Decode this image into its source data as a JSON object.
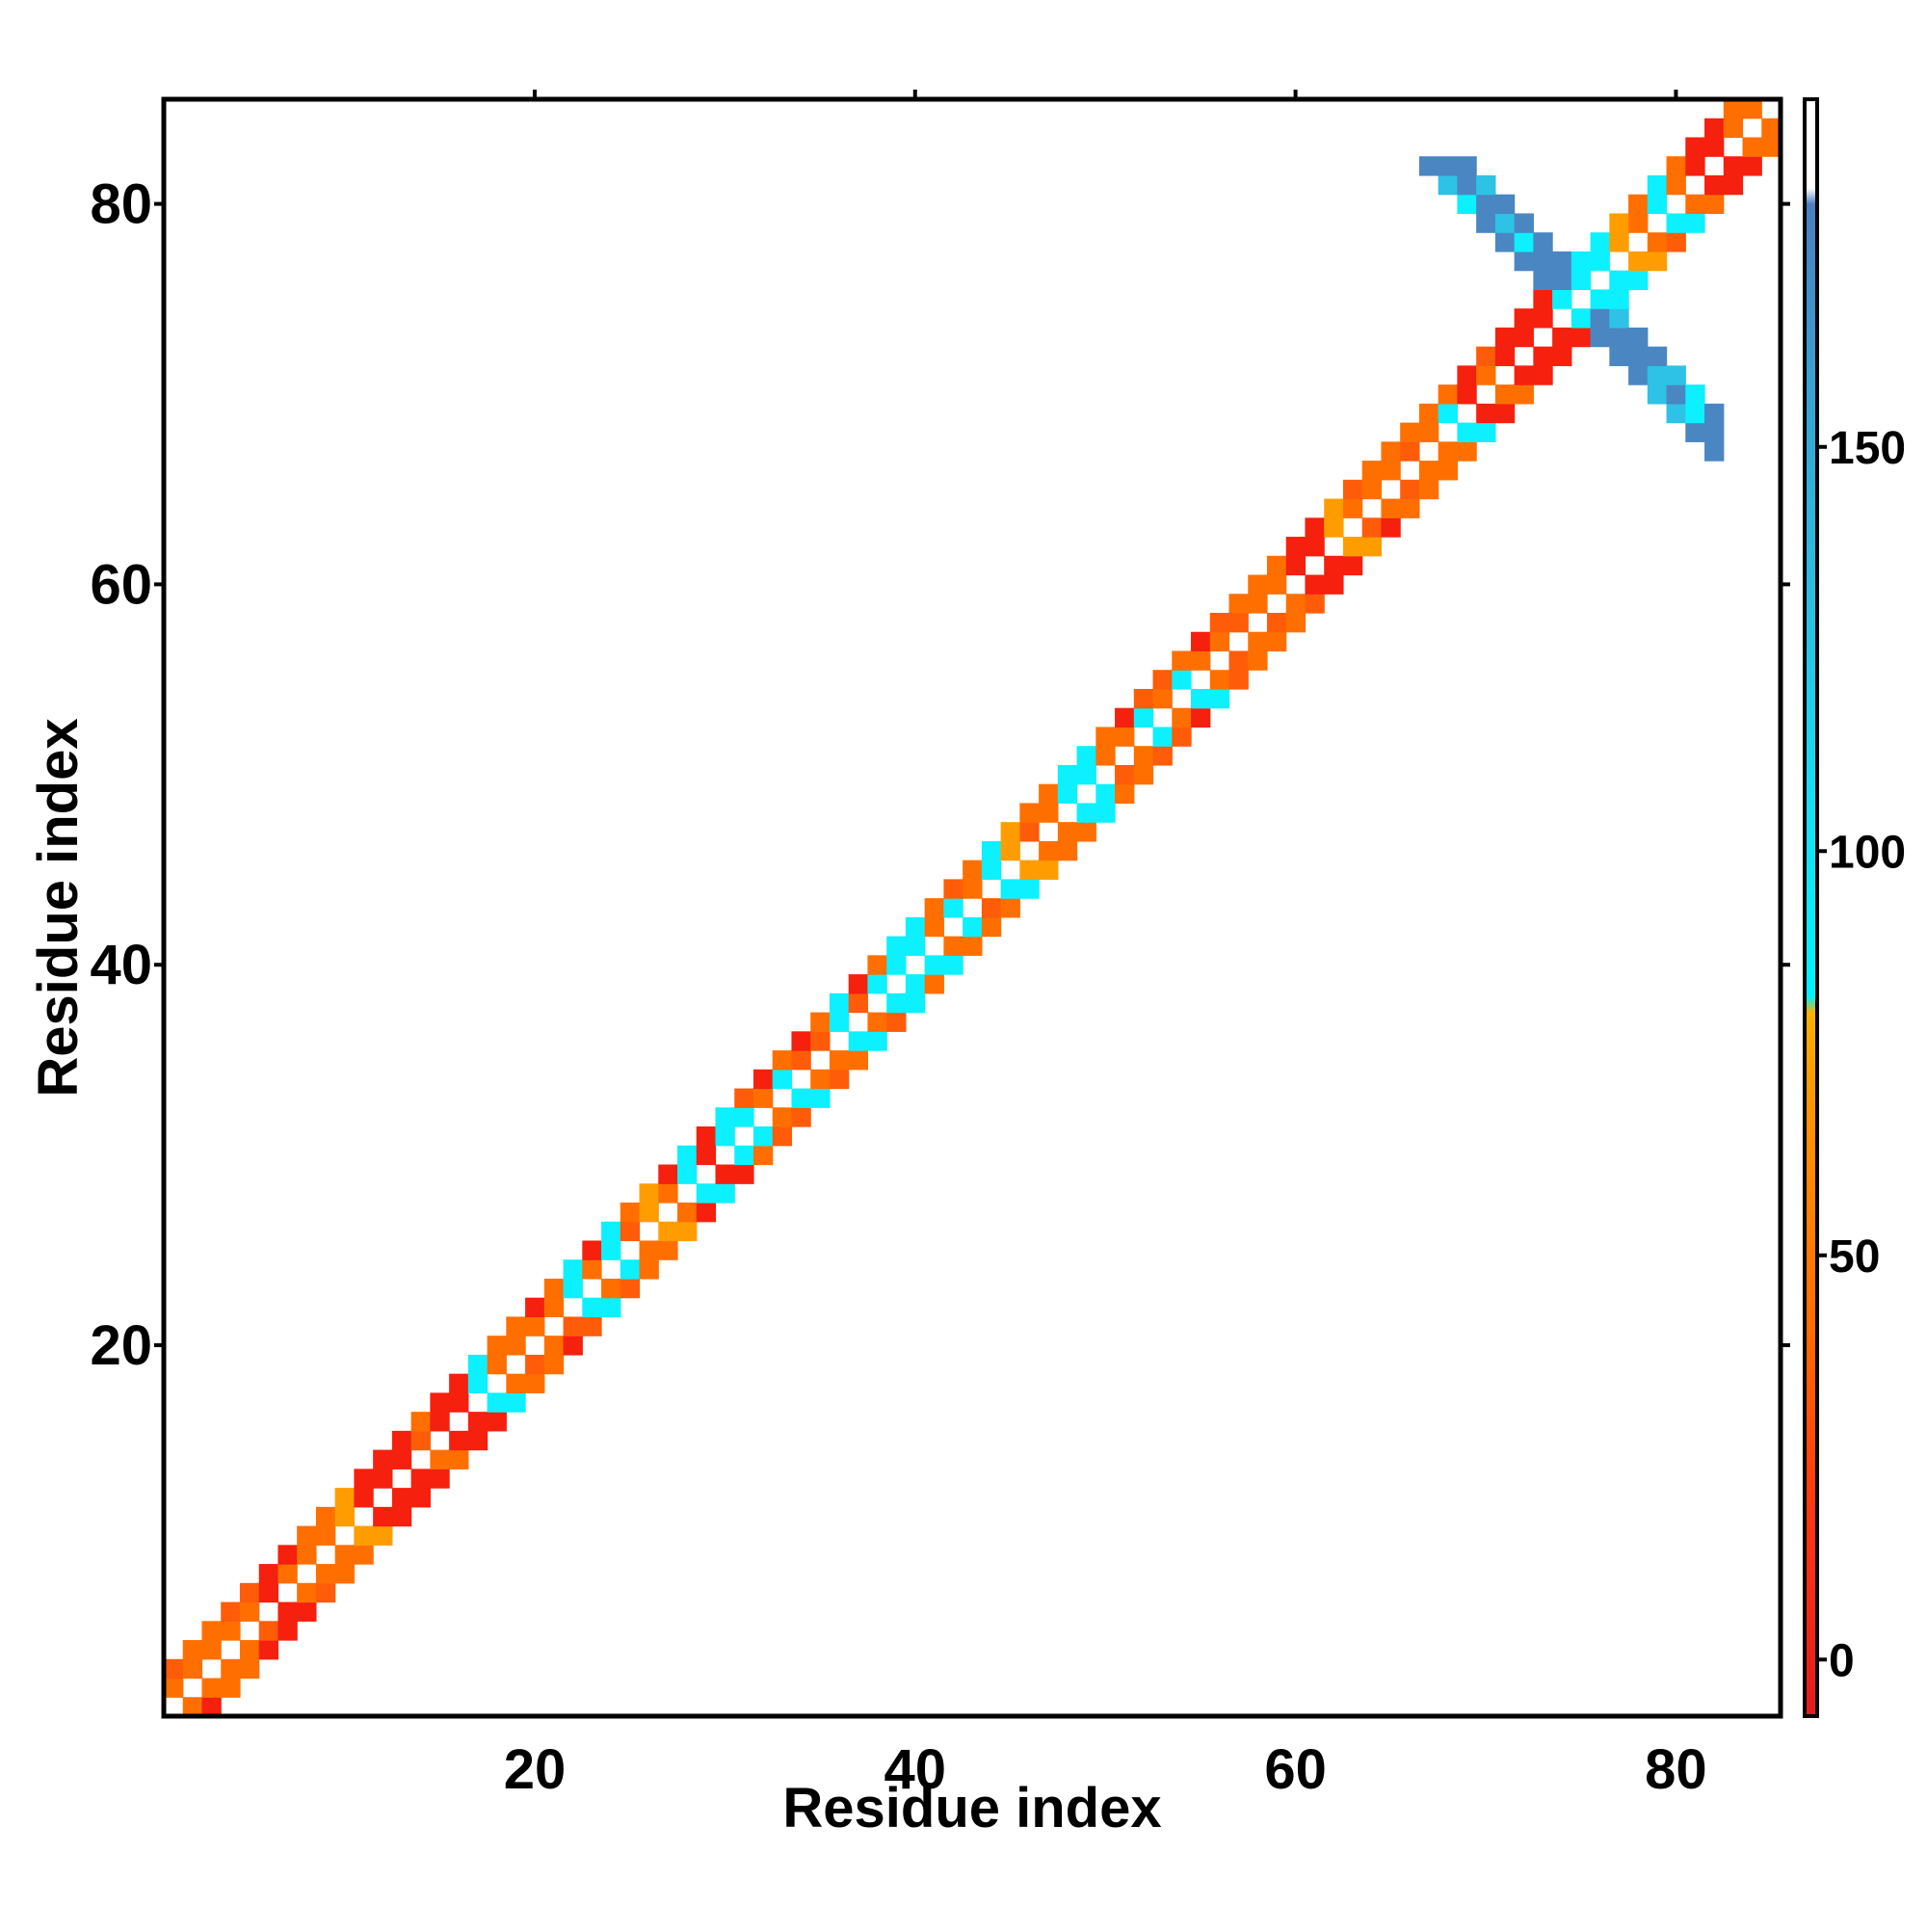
{
  "chart_data": {
    "type": "heatmap",
    "title": "",
    "xlabel": "Residue index",
    "ylabel": "Residue index",
    "xlim": [
      1,
      85
    ],
    "ylim": [
      1,
      85
    ],
    "x_ticks": [
      20,
      40,
      60,
      80
    ],
    "y_ticks": [
      20,
      40,
      60,
      80
    ],
    "colorbar": {
      "ticks": [
        0,
        50,
        100,
        150
      ],
      "range": [
        -7,
        193
      ],
      "stops": [
        {
          "value": -7,
          "color": "#e41a1c"
        },
        {
          "value": 20,
          "color": "#ff3a10"
        },
        {
          "value": 40,
          "color": "#ff6a00"
        },
        {
          "value": 70,
          "color": "#ff9800"
        },
        {
          "value": 80,
          "color": "#ffb000"
        },
        {
          "value": 82,
          "color": "#00f2ff"
        },
        {
          "value": 105,
          "color": "#18e0f2"
        },
        {
          "value": 130,
          "color": "#2cbfe0"
        },
        {
          "value": 160,
          "color": "#3a9fd0"
        },
        {
          "value": 180,
          "color": "#4a7fc0"
        },
        {
          "value": 182,
          "color": "#ffffff"
        },
        {
          "value": 193,
          "color": "#ffffff"
        }
      ]
    },
    "cell_colors": {
      "red": "#f5200e",
      "orange_red": "#ff5c0a",
      "orange": "#ff6f00",
      "amber": "#ff9d00",
      "cyan": "#0df0ff",
      "light_blue": "#2ec2e6",
      "blue": "#4a86c2"
    },
    "diagonal_codes": "OOOOOROOOARRRORRCOOOOCOCOAOCRCCOCOOCOCCCOCOCAOOCCOOCOCOOOOORRAOOOOOCRORRRCCCAOCORROO",
    "blue_cross_domain": {
      "residues": [
        67,
        82
      ],
      "center": 75
    },
    "series": []
  }
}
